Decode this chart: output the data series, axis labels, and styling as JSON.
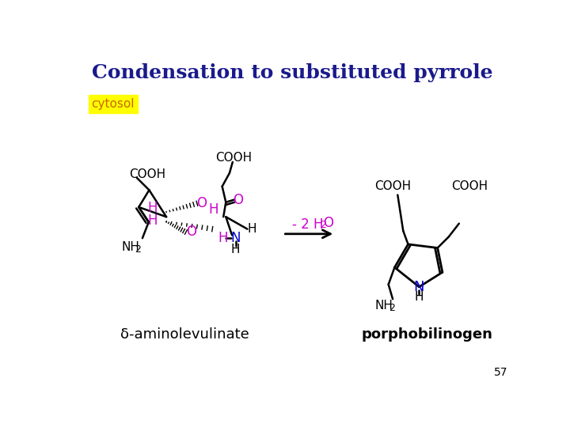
{
  "title": "Condensation to substituted pyrrole",
  "title_color": "#1a1a8c",
  "cytosol_label": "cytosol",
  "cytosol_bg": "#ffff00",
  "cytosol_color": "#cc6600",
  "reactant_label": "δ-aminolevulinate",
  "product_label": "porphobilinogen",
  "page_number": "57",
  "bg_color": "#ffffff",
  "magenta": "#cc00cc",
  "blue_n": "#0000cc"
}
